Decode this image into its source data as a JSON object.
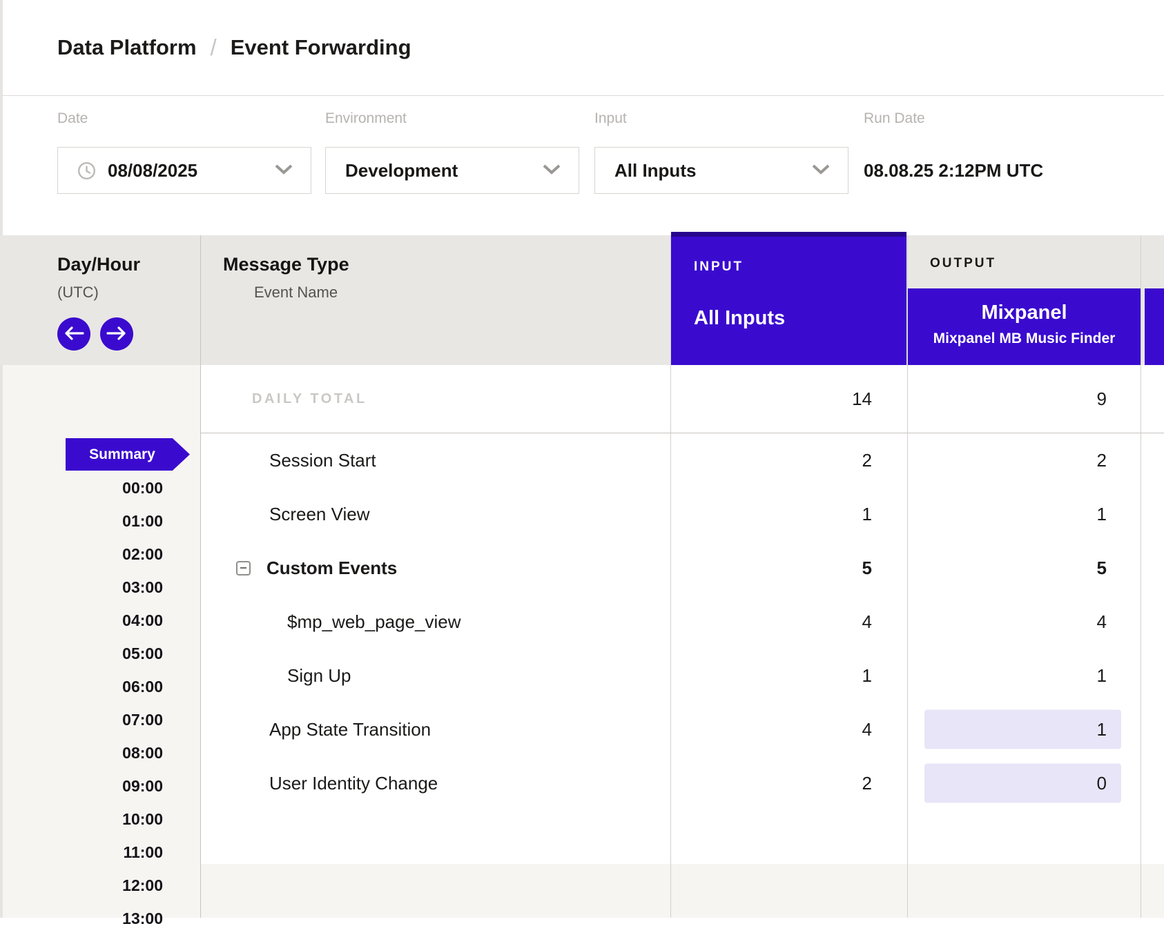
{
  "breadcrumb": {
    "section": "Data Platform",
    "separator": "/",
    "page": "Event Forwarding"
  },
  "filters": {
    "date": {
      "label": "Date",
      "value": "08/08/2025",
      "icon": "clock-icon",
      "dropdown_icon": "chevron-down-icon"
    },
    "environment": {
      "label": "Environment",
      "value": "Development",
      "dropdown_icon": "chevron-down-icon"
    },
    "input": {
      "label": "Input",
      "value": "All Inputs",
      "dropdown_icon": "chevron-down-icon"
    },
    "run_date": {
      "label": "Run Date",
      "value": "08.08.25 2:12PM UTC"
    }
  },
  "table": {
    "day_hour": {
      "title": "Day/Hour",
      "subtitle": "(UTC)",
      "prev_icon": "arrow-left-icon",
      "next_icon": "arrow-right-icon"
    },
    "message_type": {
      "title": "Message Type",
      "subtitle": "Event Name"
    },
    "input_column": {
      "header": "INPUT",
      "name": "All Inputs"
    },
    "output_column": {
      "header": "OUTPUT",
      "name": "Mixpanel",
      "subtitle": "Mixpanel MB Music Finder"
    },
    "daily_total": {
      "label": "DAILY TOTAL",
      "input": "14",
      "output": "9"
    },
    "rows": [
      {
        "label": "Session Start",
        "input": "2",
        "output": "2",
        "indent": 0,
        "bold": false,
        "collapsible": false,
        "output_highlight": false
      },
      {
        "label": "Screen View",
        "input": "1",
        "output": "1",
        "indent": 0,
        "bold": false,
        "collapsible": false,
        "output_highlight": false
      },
      {
        "label": "Custom Events",
        "input": "5",
        "output": "5",
        "indent": 0,
        "bold": true,
        "collapsible": true,
        "output_highlight": false
      },
      {
        "label": "$mp_web_page_view",
        "input": "4",
        "output": "4",
        "indent": 1,
        "bold": false,
        "collapsible": false,
        "output_highlight": false
      },
      {
        "label": "Sign Up",
        "input": "1",
        "output": "1",
        "indent": 1,
        "bold": false,
        "collapsible": false,
        "output_highlight": false
      },
      {
        "label": "App State Transition",
        "input": "4",
        "output": "1",
        "indent": 0,
        "bold": false,
        "collapsible": false,
        "output_highlight": true
      },
      {
        "label": "User Identity Change",
        "input": "2",
        "output": "0",
        "indent": 0,
        "bold": false,
        "collapsible": false,
        "output_highlight": true
      }
    ],
    "sidebar": {
      "summary_label": "Summary",
      "hours": [
        "00:00",
        "01:00",
        "02:00",
        "03:00",
        "04:00",
        "05:00",
        "06:00",
        "07:00",
        "08:00",
        "09:00",
        "10:00",
        "11:00",
        "12:00",
        "13:00"
      ]
    }
  },
  "colors": {
    "accent_purple": "#3a0bce",
    "accent_purple_dark": "#26068e",
    "highlight_lavender": "#e8e5f8",
    "header_band_gray": "#e9e7e4",
    "sidebar_gray": "#f7f5f2"
  }
}
